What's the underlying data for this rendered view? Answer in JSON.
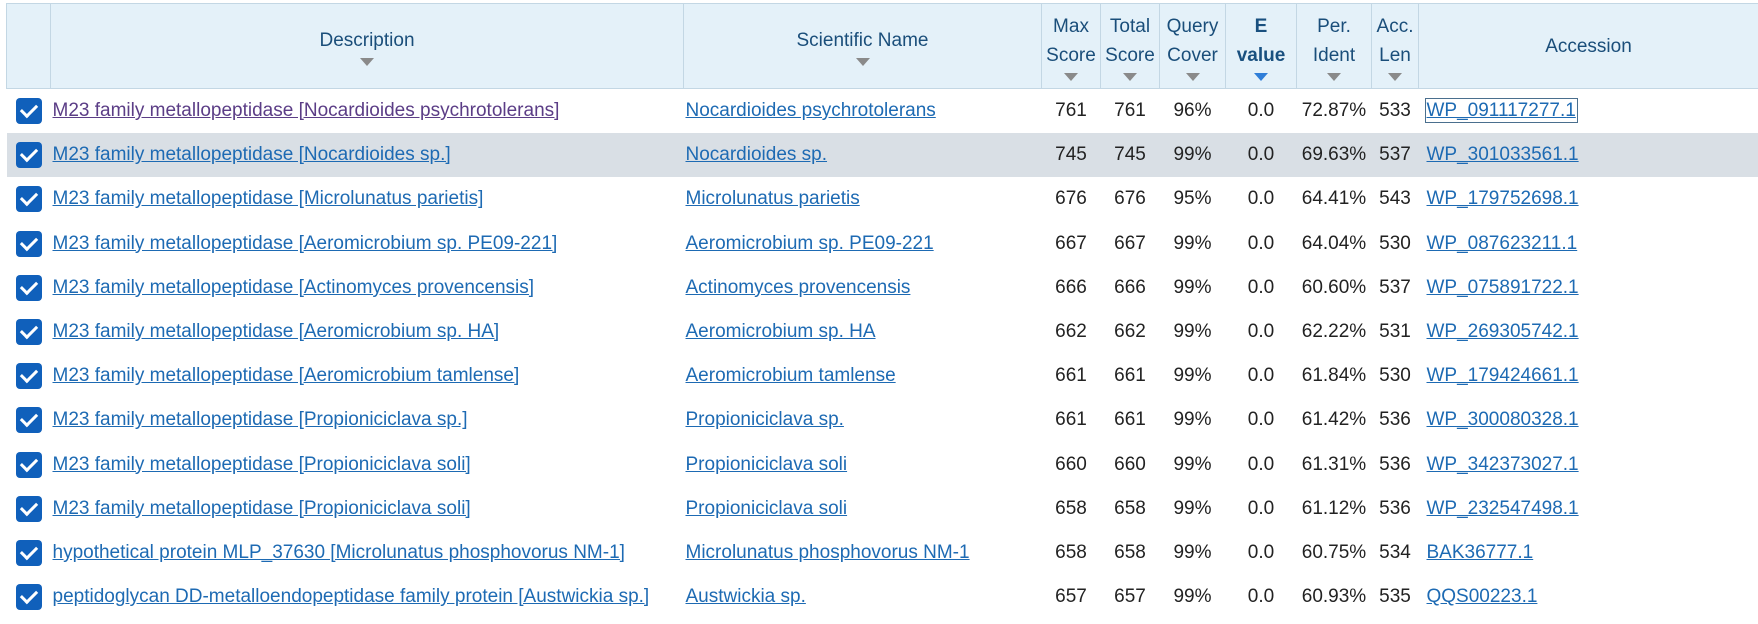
{
  "headers": {
    "description": "Description",
    "scientific_name": "Scientific Name",
    "max_score": [
      "Max",
      "Score"
    ],
    "total_score": [
      "Total",
      "Score"
    ],
    "query_cover": [
      "Query",
      "Cover"
    ],
    "e_value": [
      "E",
      "value"
    ],
    "per_ident": [
      "Per.",
      "Ident"
    ],
    "acc_len": [
      "Acc.",
      "Len"
    ],
    "accession": "Accession"
  },
  "rows": [
    {
      "description": "M23 family metallopeptidase [Nocardioides psychrotolerans]",
      "scientific_name": "Nocardioides psychrotolerans",
      "max_score": "761",
      "total_score": "761",
      "query_cover": "96%",
      "e_value": "0.0",
      "per_ident": "72.87%",
      "acc_len": "533",
      "accession": "WP_091117277.1",
      "checked": true
    },
    {
      "description": "M23 family metallopeptidase [Nocardioides sp.]",
      "scientific_name": "Nocardioides sp.",
      "max_score": "745",
      "total_score": "745",
      "query_cover": "99%",
      "e_value": "0.0",
      "per_ident": "69.63%",
      "acc_len": "537",
      "accession": "WP_301033561.1",
      "checked": true
    },
    {
      "description": "M23 family metallopeptidase [Microlunatus parietis]",
      "scientific_name": "Microlunatus parietis",
      "max_score": "676",
      "total_score": "676",
      "query_cover": "95%",
      "e_value": "0.0",
      "per_ident": "64.41%",
      "acc_len": "543",
      "accession": "WP_179752698.1",
      "checked": true
    },
    {
      "description": "M23 family metallopeptidase [Aeromicrobium sp. PE09-221]",
      "scientific_name": "Aeromicrobium sp. PE09-221",
      "max_score": "667",
      "total_score": "667",
      "query_cover": "99%",
      "e_value": "0.0",
      "per_ident": "64.04%",
      "acc_len": "530",
      "accession": "WP_087623211.1",
      "checked": true
    },
    {
      "description": "M23 family metallopeptidase [Actinomyces provencensis]",
      "scientific_name": "Actinomyces provencensis",
      "max_score": "666",
      "total_score": "666",
      "query_cover": "99%",
      "e_value": "0.0",
      "per_ident": "60.60%",
      "acc_len": "537",
      "accession": "WP_075891722.1",
      "checked": true
    },
    {
      "description": "M23 family metallopeptidase [Aeromicrobium sp. HA]",
      "scientific_name": "Aeromicrobium sp. HA",
      "max_score": "662",
      "total_score": "662",
      "query_cover": "99%",
      "e_value": "0.0",
      "per_ident": "62.22%",
      "acc_len": "531",
      "accession": "WP_269305742.1",
      "checked": true
    },
    {
      "description": "M23 family metallopeptidase [Aeromicrobium tamlense]",
      "scientific_name": "Aeromicrobium tamlense",
      "max_score": "661",
      "total_score": "661",
      "query_cover": "99%",
      "e_value": "0.0",
      "per_ident": "61.84%",
      "acc_len": "530",
      "accession": "WP_179424661.1",
      "checked": true
    },
    {
      "description": "M23 family metallopeptidase [Propioniciclava sp.]",
      "scientific_name": "Propioniciclava sp.",
      "max_score": "661",
      "total_score": "661",
      "query_cover": "99%",
      "e_value": "0.0",
      "per_ident": "61.42%",
      "acc_len": "536",
      "accession": "WP_300080328.1",
      "checked": true
    },
    {
      "description": "M23 family metallopeptidase [Propioniciclava soli]",
      "scientific_name": "Propioniciclava soli",
      "max_score": "660",
      "total_score": "660",
      "query_cover": "99%",
      "e_value": "0.0",
      "per_ident": "61.31%",
      "acc_len": "536",
      "accession": "WP_342373027.1",
      "checked": true
    },
    {
      "description": "M23 family metallopeptidase [Propioniciclava soli]",
      "scientific_name": "Propioniciclava soli",
      "max_score": "658",
      "total_score": "658",
      "query_cover": "99%",
      "e_value": "0.0",
      "per_ident": "61.12%",
      "acc_len": "536",
      "accession": "WP_232547498.1",
      "checked": true
    },
    {
      "description": "hypothetical protein MLP_37630 [Microlunatus phosphovorus NM-1]",
      "scientific_name": "Microlunatus phosphovorus NM-1",
      "max_score": "658",
      "total_score": "658",
      "query_cover": "99%",
      "e_value": "0.0",
      "per_ident": "60.75%",
      "acc_len": "534",
      "accession": "BAK36777.1",
      "checked": true
    },
    {
      "description": "peptidoglycan DD-metalloendopeptidase family protein [Austwickia sp.]",
      "scientific_name": "Austwickia sp.",
      "max_score": "657",
      "total_score": "657",
      "query_cover": "99%",
      "e_value": "0.0",
      "per_ident": "60.93%",
      "acc_len": "535",
      "accession": "QQS00223.1",
      "checked": true
    }
  ],
  "colors": {
    "header_bg": "#e4f1f9",
    "link": "#1d6ab3",
    "visited_link": "#5b3d86",
    "checkbox": "#1060bb",
    "hover_row": "#d9dfe5",
    "sort_caret_active": "#2f7ed8"
  },
  "icons": {
    "sort_caret": "caret-down-icon",
    "checkbox": "checkbox-checked-icon"
  }
}
